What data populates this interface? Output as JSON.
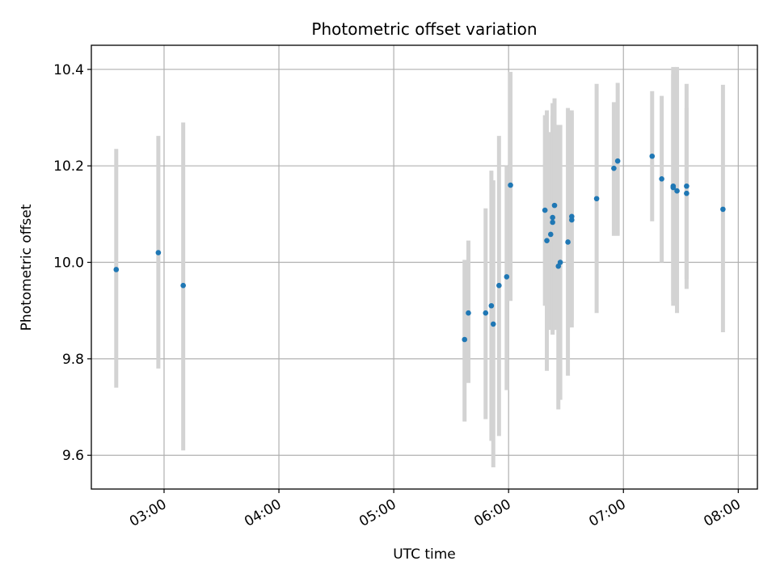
{
  "chart_data": {
    "type": "scatter",
    "title": "Photometric offset variation",
    "xlabel": "UTC time",
    "ylabel": "Photometric offset",
    "grid": true,
    "xlim": [
      "02:22",
      "08:10"
    ],
    "ylim": [
      9.53,
      10.45
    ],
    "x_ticks": [
      "03:00",
      "04:00",
      "05:00",
      "06:00",
      "07:00",
      "08:00"
    ],
    "y_ticks": [
      9.6,
      9.8,
      10.0,
      10.2,
      10.4
    ],
    "y_tick_labels": [
      "9.6",
      "9.8",
      "10.0",
      "10.2",
      "10.4"
    ],
    "colors": {
      "point": "#1f77b4",
      "errorbar": "#d3d3d3",
      "grid": "#b0b0b0",
      "axes": "#000000"
    },
    "points": [
      {
        "time": "02:35",
        "y": 9.985,
        "ylo": 9.74,
        "yhi": 10.235
      },
      {
        "time": "02:57",
        "y": 10.02,
        "ylo": 9.78,
        "yhi": 10.262
      },
      {
        "time": "03:10",
        "y": 9.952,
        "ylo": 9.61,
        "yhi": 10.29
      },
      {
        "time": "05:37",
        "y": 9.84,
        "ylo": 9.67,
        "yhi": 10.005
      },
      {
        "time": "05:39",
        "y": 9.895,
        "ylo": 9.75,
        "yhi": 10.045
      },
      {
        "time": "05:48",
        "y": 9.895,
        "ylo": 9.675,
        "yhi": 10.112
      },
      {
        "time": "05:51",
        "y": 9.91,
        "ylo": 9.63,
        "yhi": 10.19
      },
      {
        "time": "05:52",
        "y": 9.872,
        "ylo": 9.575,
        "yhi": 10.17
      },
      {
        "time": "05:55",
        "y": 9.952,
        "ylo": 9.64,
        "yhi": 10.262
      },
      {
        "time": "05:59",
        "y": 9.97,
        "ylo": 9.735,
        "yhi": 10.2
      },
      {
        "time": "06:01",
        "y": 10.16,
        "ylo": 9.92,
        "yhi": 10.395
      },
      {
        "time": "06:19",
        "y": 10.108,
        "ylo": 9.91,
        "yhi": 10.305
      },
      {
        "time": "06:20",
        "y": 10.045,
        "ylo": 9.775,
        "yhi": 10.315
      },
      {
        "time": "06:22",
        "y": 10.058,
        "ylo": 9.86,
        "yhi": 10.27
      },
      {
        "time": "06:23",
        "y": 10.093,
        "ylo": 9.85,
        "yhi": 10.33
      },
      {
        "time": "06:23",
        "y": 10.083,
        "ylo": 9.86,
        "yhi": 10.305
      },
      {
        "time": "06:24",
        "y": 10.118,
        "ylo": 9.86,
        "yhi": 10.34
      },
      {
        "time": "06:26",
        "y": 9.992,
        "ylo": 9.695,
        "yhi": 10.285
      },
      {
        "time": "06:27",
        "y": 10.0,
        "ylo": 9.715,
        "yhi": 10.285
      },
      {
        "time": "06:31",
        "y": 10.042,
        "ylo": 9.765,
        "yhi": 10.32
      },
      {
        "time": "06:33",
        "y": 10.095,
        "ylo": 9.88,
        "yhi": 10.315
      },
      {
        "time": "06:33",
        "y": 10.088,
        "ylo": 9.865,
        "yhi": 10.31
      },
      {
        "time": "06:46",
        "y": 10.132,
        "ylo": 9.895,
        "yhi": 10.37
      },
      {
        "time": "06:55",
        "y": 10.195,
        "ylo": 10.055,
        "yhi": 10.332
      },
      {
        "time": "06:57",
        "y": 10.21,
        "ylo": 10.055,
        "yhi": 10.372
      },
      {
        "time": "07:15",
        "y": 10.22,
        "ylo": 10.085,
        "yhi": 10.355
      },
      {
        "time": "07:20",
        "y": 10.173,
        "ylo": 10.0,
        "yhi": 10.345
      },
      {
        "time": "07:26",
        "y": 10.158,
        "ylo": 9.91,
        "yhi": 10.405
      },
      {
        "time": "07:26",
        "y": 10.155,
        "ylo": 9.92,
        "yhi": 10.39
      },
      {
        "time": "07:28",
        "y": 10.148,
        "ylo": 9.895,
        "yhi": 10.405
      },
      {
        "time": "07:33",
        "y": 10.143,
        "ylo": 9.965,
        "yhi": 10.32
      },
      {
        "time": "07:33",
        "y": 10.158,
        "ylo": 9.945,
        "yhi": 10.37
      },
      {
        "time": "07:52",
        "y": 10.11,
        "ylo": 9.855,
        "yhi": 10.368
      }
    ]
  }
}
